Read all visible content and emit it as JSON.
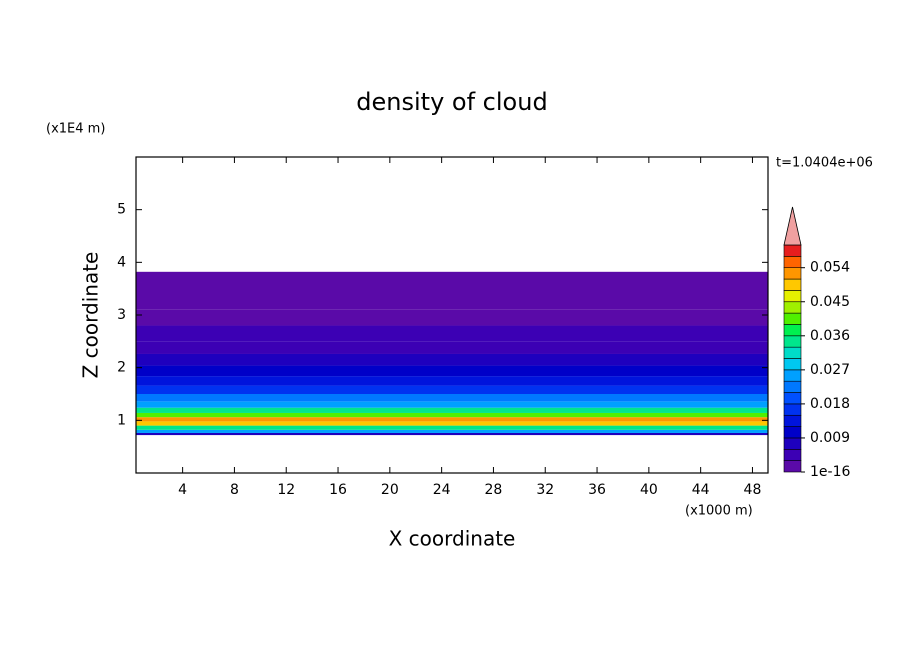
{
  "chart_data": {
    "type": "contour",
    "title": "density of cloud",
    "y_unit_label": "(x1E4 m)",
    "x_unit_label": "(x1000 m)",
    "time_label": "t=1.0404e+06",
    "x_label": "X coordinate",
    "y_label": "Z coordinate",
    "xlim": [
      0.4,
      49.2
    ],
    "xticks": [
      4,
      8,
      12,
      16,
      20,
      24,
      28,
      32,
      36,
      40,
      44,
      48
    ],
    "ylim": [
      0,
      6
    ],
    "yticks": [
      1,
      2,
      3,
      4,
      5
    ],
    "z_edges": [
      0.72,
      0.76,
      0.82,
      0.9,
      0.98,
      1.06,
      1.14,
      1.24,
      1.36,
      1.5,
      1.66,
      1.84,
      2.04,
      2.26,
      2.5,
      2.8,
      3.1,
      3.82
    ],
    "values": [
      0.008,
      0.024,
      0.033,
      0.048,
      0.052,
      0.04,
      0.033,
      0.026,
      0.021,
      0.017,
      0.014,
      0.011,
      0.008,
      0.005,
      0.0035,
      0.002,
      0.0008
    ],
    "colorbar": {
      "levels": [
        1e-16,
        0.003,
        0.006,
        0.009,
        0.012,
        0.015,
        0.018,
        0.021,
        0.024,
        0.027,
        0.03,
        0.033,
        0.036,
        0.039,
        0.042,
        0.045,
        0.048,
        0.051,
        0.054,
        0.057,
        0.06
      ],
      "colors": [
        "#5a0aa8",
        "#3c00b4",
        "#1e00be",
        "#0000c8",
        "#0014dc",
        "#0032f0",
        "#0050ff",
        "#0078ff",
        "#00a0ff",
        "#00c8f0",
        "#00dcc8",
        "#00e68c",
        "#00f050",
        "#50f000",
        "#a0f000",
        "#e6f000",
        "#ffc800",
        "#ff9600",
        "#ff6400",
        "#e61e1e"
      ],
      "overflow_color": "#f0a0a0",
      "ticks": [
        1e-16,
        0.009,
        0.018,
        0.027,
        0.036,
        0.045,
        0.054
      ]
    }
  }
}
